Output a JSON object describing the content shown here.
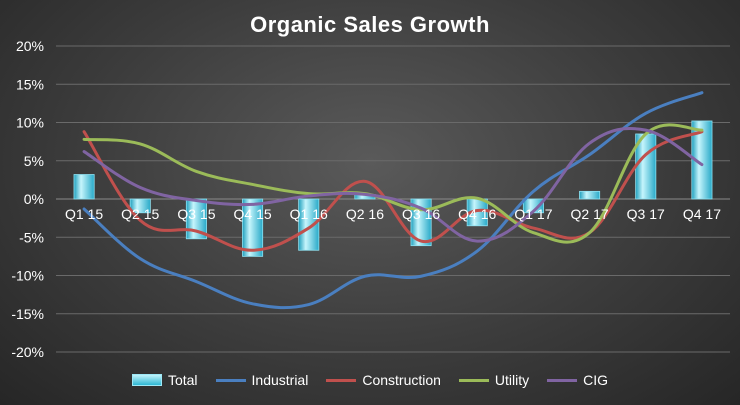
{
  "chart_data": {
    "type": "bar+line",
    "title": "Organic Sales Growth",
    "categories": [
      "Q1 15",
      "Q2 15",
      "Q3 15",
      "Q4 15",
      "Q1 16",
      "Q2 16",
      "Q3 16",
      "Q4 16",
      "Q1 17",
      "Q2 17",
      "Q3 17",
      "Q4 17"
    ],
    "y_ticks": [
      "20%",
      "15%",
      "10%",
      "5%",
      "0%",
      "-5%",
      "-10%",
      "-15%",
      "-20%"
    ],
    "ylim": [
      -20,
      20
    ],
    "grid": true,
    "legend_position": "bottom",
    "series": [
      {
        "name": "Total",
        "type": "bar",
        "color": "#33bcd8",
        "values": [
          3.2,
          -1.8,
          -5.2,
          -7.5,
          -6.7,
          0.6,
          -6.1,
          -3.5,
          -1.8,
          1.0,
          8.5,
          10.2
        ]
      },
      {
        "name": "Industrial",
        "type": "line",
        "color": "#4a7fc0",
        "values": [
          -1.3,
          -7.8,
          -10.8,
          -13.7,
          -13.8,
          -10.1,
          -10.1,
          -6.8,
          1.0,
          5.8,
          11.2,
          13.9
        ]
      },
      {
        "name": "Construction",
        "type": "line",
        "color": "#c0504d",
        "values": [
          8.8,
          -2.8,
          -4.2,
          -6.7,
          -3.8,
          2.3,
          -5.5,
          -1.5,
          -3.8,
          -4.4,
          5.8,
          8.8
        ]
      },
      {
        "name": "Utility",
        "type": "line",
        "color": "#9bbb59",
        "values": [
          7.8,
          7.2,
          3.6,
          1.9,
          0.7,
          0.7,
          -1.4,
          0.1,
          -4.4,
          -4.4,
          8.5,
          9.0
        ]
      },
      {
        "name": "CIG",
        "type": "line",
        "color": "#8064a2",
        "values": [
          6.2,
          1.5,
          -0.2,
          -0.7,
          0.4,
          0.6,
          -1.2,
          -5.5,
          -1.6,
          7.3,
          9.0,
          4.5
        ]
      }
    ]
  }
}
